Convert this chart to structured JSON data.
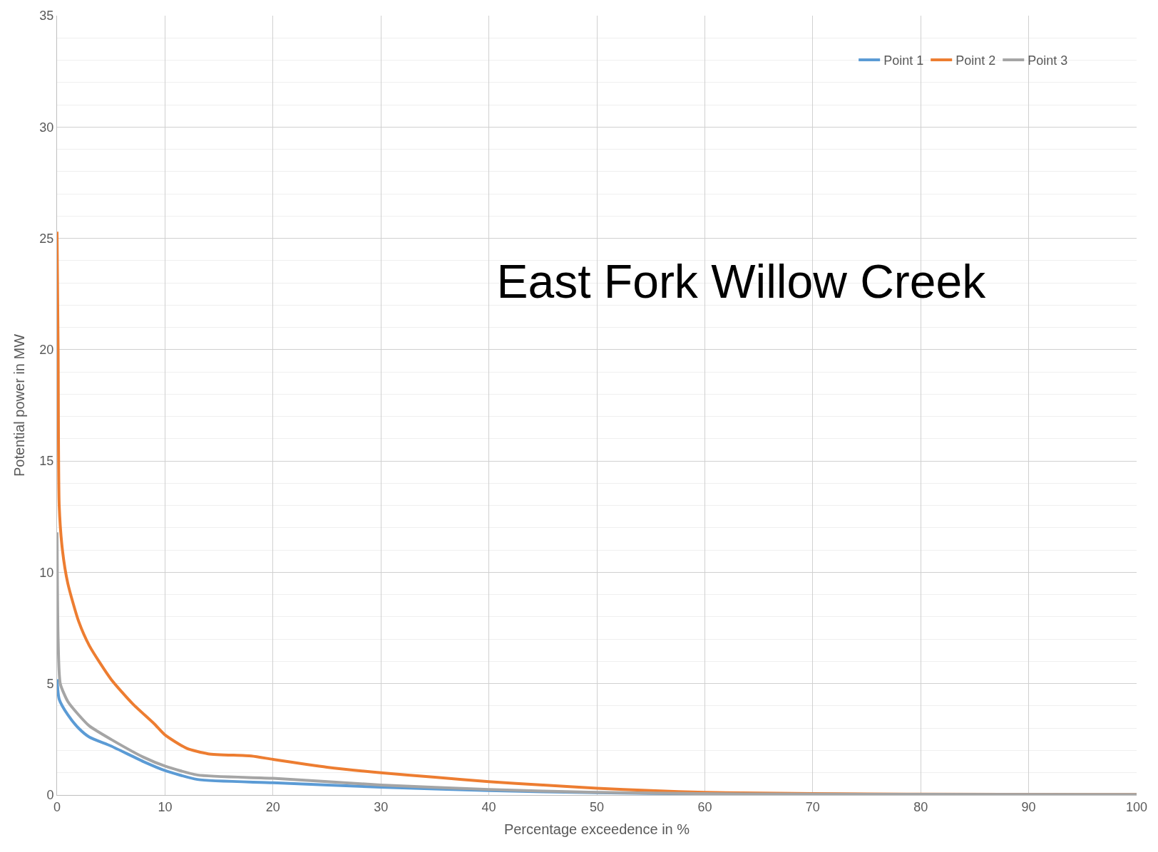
{
  "chart_data": {
    "type": "line",
    "title": "East Fork Willow Creek",
    "xlabel": "Percentage exceedence in %",
    "ylabel": "Potential power in MW",
    "xlim": [
      0,
      100
    ],
    "xticks": [
      0,
      10,
      20,
      30,
      40,
      50,
      60,
      70,
      80,
      90,
      100
    ],
    "ylim": [
      0,
      35
    ],
    "yticks": [
      0,
      5,
      10,
      15,
      20,
      25,
      30,
      35
    ],
    "grid": true,
    "legend": "top right",
    "marker": "none",
    "line_style": "solid",
    "series": [
      {
        "name": "Point 1",
        "color": "#5b9bd5",
        "x": [
          0,
          0.2,
          1,
          2,
          3,
          5,
          8,
          10,
          13,
          20,
          30,
          40,
          50,
          60,
          70
        ],
        "values": [
          5.2,
          4.3,
          3.6,
          3.0,
          2.6,
          2.2,
          1.5,
          1.1,
          0.7,
          0.55,
          0.35,
          0.2,
          0.1,
          0.05,
          0.03
        ]
      },
      {
        "name": "Point 2",
        "color": "#ed7d31",
        "x": [
          0,
          0.1,
          0.2,
          0.5,
          1,
          2,
          3,
          5,
          7,
          9,
          10,
          12,
          14,
          18,
          20,
          25,
          30,
          35,
          40,
          45,
          50,
          55,
          60,
          70,
          80,
          100
        ],
        "values": [
          25.3,
          20,
          13,
          11,
          9.5,
          7.8,
          6.7,
          5.2,
          4.1,
          3.2,
          2.7,
          2.1,
          1.85,
          1.75,
          1.6,
          1.25,
          1.0,
          0.8,
          0.6,
          0.45,
          0.3,
          0.2,
          0.12,
          0.06,
          0.04,
          0.02
        ]
      },
      {
        "name": "Point 3",
        "color": "#a5a5a5",
        "x": [
          0,
          0.1,
          0.3,
          1,
          2,
          3,
          5,
          8,
          10,
          13,
          20,
          30,
          40,
          50,
          60,
          70,
          80,
          100
        ],
        "values": [
          11.8,
          7,
          5,
          4.2,
          3.6,
          3.1,
          2.5,
          1.7,
          1.3,
          0.9,
          0.75,
          0.45,
          0.25,
          0.12,
          0.06,
          0.04,
          0.03,
          0.02
        ]
      }
    ]
  }
}
